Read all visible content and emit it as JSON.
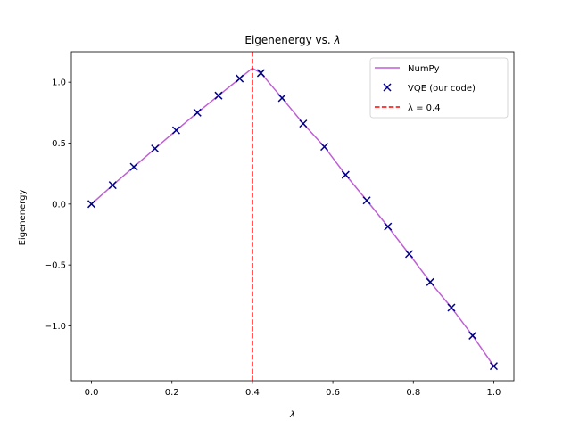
{
  "chart_data": {
    "type": "line",
    "title": "Eigenenergy vs. λ",
    "title_prefix": "Eigenenergy vs. ",
    "title_symbol": "λ",
    "xlabel": "λ",
    "ylabel": "Eigenenergy",
    "xlim": [
      -0.05,
      1.05
    ],
    "ylim": [
      -1.45,
      1.25
    ],
    "x_ticks": [
      0.0,
      0.2,
      0.4,
      0.6,
      0.8,
      1.0
    ],
    "x_tick_labels": [
      "0.0",
      "0.2",
      "0.4",
      "0.6",
      "0.8",
      "1.0"
    ],
    "y_ticks": [
      -1.0,
      -0.5,
      0.0,
      0.5,
      1.0
    ],
    "y_tick_labels": [
      "−1.0",
      "−0.5",
      "0.0",
      "0.5",
      "1.0"
    ],
    "grid": false,
    "legend_position": "top-right",
    "series": [
      {
        "name": "NumPy",
        "kind": "line",
        "color": "#bf5fd6",
        "x": [
          0.0,
          0.0526,
          0.1053,
          0.1579,
          0.2105,
          0.2632,
          0.3158,
          0.3684,
          0.4,
          0.4211,
          0.4737,
          0.5263,
          0.5789,
          0.6316,
          0.6842,
          0.7368,
          0.7895,
          0.8421,
          0.8947,
          0.9474,
          1.0
        ],
        "y": [
          0.0,
          0.155,
          0.305,
          0.455,
          0.605,
          0.75,
          0.89,
          1.03,
          1.115,
          1.075,
          0.87,
          0.66,
          0.47,
          0.24,
          0.03,
          -0.185,
          -0.41,
          -0.64,
          -0.85,
          -1.08,
          -1.33
        ]
      },
      {
        "name": "VQE (our code)",
        "kind": "scatter",
        "marker": "x",
        "color": "#00008b",
        "x": [
          0.0,
          0.0526,
          0.1053,
          0.1579,
          0.2105,
          0.2632,
          0.3158,
          0.3684,
          0.4211,
          0.4737,
          0.5263,
          0.5789,
          0.6316,
          0.6842,
          0.7368,
          0.7895,
          0.8421,
          0.8947,
          0.9474,
          1.0
        ],
        "y": [
          0.0,
          0.155,
          0.305,
          0.455,
          0.605,
          0.75,
          0.89,
          1.03,
          1.075,
          0.87,
          0.66,
          0.47,
          0.24,
          0.03,
          -0.185,
          -0.41,
          -0.64,
          -0.85,
          -1.08,
          -1.33
        ]
      },
      {
        "name": "λ = 0.4",
        "kind": "vline",
        "style": "dashed",
        "color": "#ff0000",
        "x_value": 0.4
      }
    ]
  }
}
